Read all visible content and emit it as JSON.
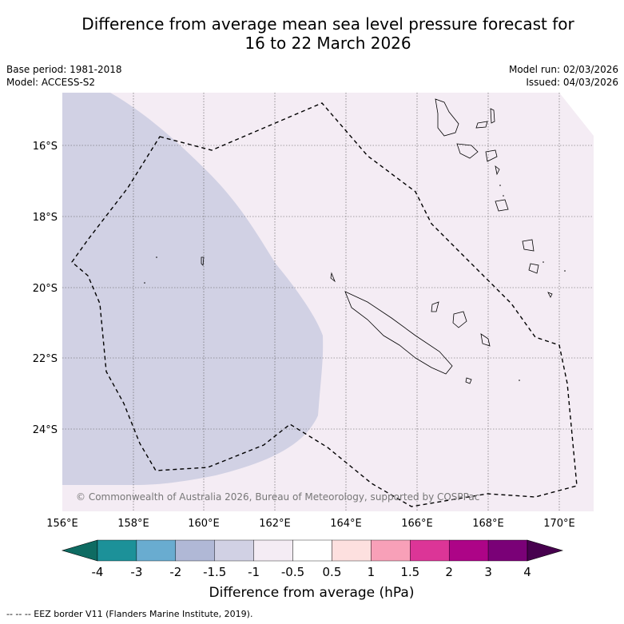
{
  "title_line1": "Difference from average mean sea level pressure forecast for",
  "title_line2": "16 to 22 March 2026",
  "meta_left": {
    "base_period": "Base period: 1981-2018",
    "model": "Model: ACCESS-S2"
  },
  "meta_right": {
    "model_run": "Model run: 02/03/2026",
    "issued": "Issued: 04/03/2026"
  },
  "map": {
    "lat_labels": [
      "16°S",
      "18°S",
      "20°S",
      "22°S",
      "24°S"
    ],
    "lon_labels": [
      "156°E",
      "158°E",
      "160°E",
      "162°E",
      "164°E",
      "166°E",
      "168°E",
      "170°E"
    ],
    "copyright": "© Commonwealth of Australia 2026, Bureau of Meteorology, supported by COSPPac",
    "colors": {
      "neg_1_5_to_neg_1": "#d1d1e4",
      "neg_1_to_neg_0_5": "#f4ecf4"
    }
  },
  "colorbar": {
    "ticks": [
      "-4",
      "-3",
      "-2",
      "-1.5",
      "-1",
      "-0.5",
      "0.5",
      "1",
      "1.5",
      "2",
      "3",
      "4"
    ],
    "colors": [
      "#0e6b62",
      "#1c9199",
      "#69acd0",
      "#b0b8d6",
      "#d1d1e4",
      "#f4ecf4",
      "#ffffff",
      "#fde0df",
      "#f8a0b8",
      "#dc3597",
      "#ad0487",
      "#7a0177",
      "#47014e"
    ],
    "label": "Difference from average (hPa)"
  },
  "legend": "-- -- -- EEZ border V11 (Flanders Marine Institute, 2019)."
}
